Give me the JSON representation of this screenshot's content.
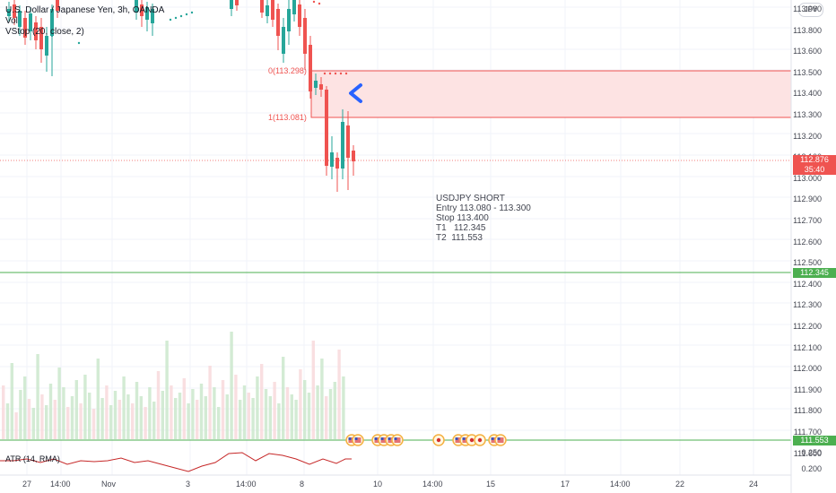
{
  "header": {
    "title": "U.S. Dollar / Japanese Yen, 3h, OANDA",
    "vol": "Vol",
    "vstop": "VStop (20, close, 2)"
  },
  "currency_button": "JPY",
  "fib": {
    "level0": "0(113.298)",
    "level1": "1(113.081)"
  },
  "trade_note": "USDJPY SHORT\nEntry 113.080 - 113.300\nStop 113.400\nT1   112.345\nT2  111.553",
  "price_axis": [
    "113.900",
    "113.800",
    "113.600",
    "113.500",
    "113.400",
    "113.300",
    "113.200",
    "113.100",
    "113.000",
    "112.900",
    "112.700",
    "112.600",
    "112.500",
    "112.400",
    "112.300",
    "112.200",
    "112.100",
    "112.000",
    "111.900",
    "111.800",
    "111.700",
    "111.600"
  ],
  "price_tags": {
    "current": {
      "price": "112.876",
      "countdown": "35:40",
      "color": "#ef5350"
    },
    "t1": {
      "price": "112.345",
      "color": "#4caf50"
    },
    "t2": {
      "price": "111.553",
      "color": "#4caf50"
    }
  },
  "atr": {
    "label": "ATR (14, RMA)",
    "ticks": [
      "0.250",
      "0.200"
    ]
  },
  "time_axis": [
    "27",
    "14:00",
    "Nov",
    "3",
    "14:00",
    "8",
    "10",
    "14:00",
    "15",
    "17",
    "14:00",
    "22",
    "24"
  ],
  "colors": {
    "bull": "#26a69a",
    "bear": "#ef5350",
    "zone": "#fde3e3",
    "target": "#4caf50",
    "atr": "#c62828"
  }
}
